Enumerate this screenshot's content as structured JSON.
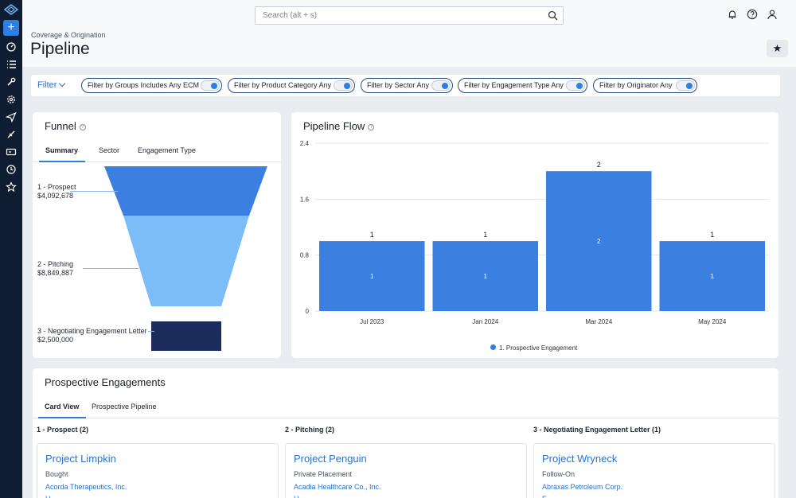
{
  "header": {
    "search_placeholder": "Search (alt + s)",
    "breadcrumb": "Coverage & Origination",
    "title": "Pipeline"
  },
  "filters": {
    "label": "Filter",
    "chips": [
      {
        "label": "Filter by Groups Includes Any ECM",
        "on": true
      },
      {
        "label": "Filter by Product Category Any",
        "on": true
      },
      {
        "label": "Filter by Sector Any",
        "on": true
      },
      {
        "label": "Filter by Engagement Type Any",
        "on": true
      },
      {
        "label": "Filter by Originator Any",
        "on": true
      }
    ]
  },
  "funnel": {
    "title": "Funnel",
    "tabs": [
      "Summary",
      "Sector",
      "Engagement Type"
    ],
    "active_tab": "Summary",
    "stages": [
      {
        "name": "1 - Prospect",
        "value": "$4,092,678",
        "color": "#3b7fe0"
      },
      {
        "name": "2 - Pitching",
        "value": "$8,849,887",
        "color": "#7cbcf7"
      },
      {
        "name": "3 - Negotiating Engagement Letter",
        "value": "$2,500,000",
        "color": "#1b2b5c"
      }
    ]
  },
  "pipeline_flow": {
    "title": "Pipeline Flow",
    "legend": "1. Prospective Engagement"
  },
  "chart_data": {
    "type": "bar",
    "categories": [
      "Jul 2023",
      "Jan 2024",
      "Mar 2024",
      "May 2024"
    ],
    "series": [
      {
        "name": "1. Prospective Engagement",
        "values": [
          1,
          1,
          2,
          1
        ],
        "color": "#3b7fe0"
      }
    ],
    "y_ticks": [
      "0",
      "0.8",
      "1.6",
      "2.4"
    ],
    "ylim": [
      0,
      2.4
    ],
    "grid": true,
    "legend_position": "bottom"
  },
  "engagements": {
    "title": "Prospective Engagements",
    "tabs": [
      "Card View",
      "Prospective Pipeline"
    ],
    "active_tab": "Card View",
    "columns": [
      {
        "header": "1 - Prospect (2)",
        "card": {
          "name": "Project Limpkin",
          "type": "Bought",
          "company": "Acorda Therapeutics, Inc.",
          "more": "H"
        }
      },
      {
        "header": "2 - Pitching (2)",
        "card": {
          "name": "Project Penguin",
          "type": "Private Placement",
          "company": "Acadia Healthcare Co., Inc.",
          "more": "H"
        }
      },
      {
        "header": "3 - Negotiating Engagement Letter (1)",
        "card": {
          "name": "Project Wryneck",
          "type": "Follow-On",
          "company": "Abraxas Petroleum Corp.",
          "more": "E"
        }
      }
    ]
  },
  "icons": {
    "rail": [
      "logo-icon",
      "add-icon",
      "dashboard-icon",
      "list-icon",
      "wrench-icon",
      "gear-icon",
      "send-icon",
      "tag-icon",
      "id-card-icon",
      "history-icon",
      "star-icon"
    ],
    "header": [
      "bell-icon",
      "help-icon",
      "user-icon"
    ]
  }
}
